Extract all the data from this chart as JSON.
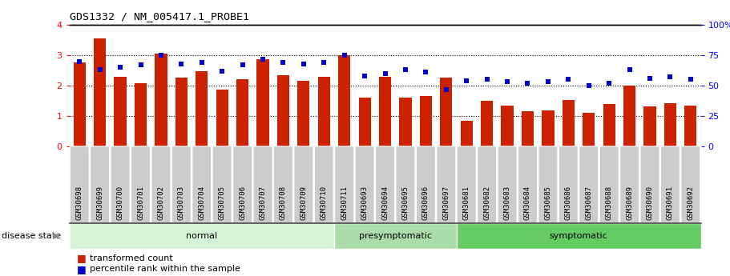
{
  "title": "GDS1332 / NM_005417.1_PROBE1",
  "samples": [
    "GSM30698",
    "GSM30699",
    "GSM30700",
    "GSM30701",
    "GSM30702",
    "GSM30703",
    "GSM30704",
    "GSM30705",
    "GSM30706",
    "GSM30707",
    "GSM30708",
    "GSM30709",
    "GSM30710",
    "GSM30711",
    "GSM30693",
    "GSM30694",
    "GSM30695",
    "GSM30696",
    "GSM30697",
    "GSM30681",
    "GSM30682",
    "GSM30683",
    "GSM30684",
    "GSM30685",
    "GSM30686",
    "GSM30687",
    "GSM30688",
    "GSM30689",
    "GSM30690",
    "GSM30691",
    "GSM30692"
  ],
  "bar_values": [
    2.75,
    3.55,
    2.28,
    2.07,
    3.05,
    2.25,
    2.47,
    1.88,
    2.22,
    2.86,
    2.33,
    2.15,
    2.3,
    3.0,
    1.6,
    2.3,
    1.6,
    1.65,
    2.25,
    0.85,
    1.5,
    1.35,
    1.15,
    1.18,
    1.52,
    1.1,
    1.38,
    2.0,
    1.32,
    1.42,
    1.35
  ],
  "dot_values": [
    70,
    63,
    65,
    67,
    75,
    68,
    69,
    62,
    67,
    72,
    69,
    68,
    69,
    75,
    58,
    60,
    63,
    61,
    47,
    54,
    55,
    53,
    52,
    53,
    55,
    50,
    52,
    63,
    56,
    57,
    55
  ],
  "groups": [
    {
      "label": "normal",
      "start": 0,
      "end": 13
    },
    {
      "label": "presymptomatic",
      "start": 13,
      "end": 19
    },
    {
      "label": "symptomatic",
      "start": 19,
      "end": 31
    }
  ],
  "group_colors": [
    "#d6f5d6",
    "#aaddaa",
    "#66cc66"
  ],
  "bar_color": "#cc2200",
  "dot_color": "#0000cc",
  "ylim_left": [
    0,
    4
  ],
  "ylim_right": [
    0,
    100
  ],
  "yticks_left": [
    0,
    1,
    2,
    3,
    4
  ],
  "yticks_right": [
    0,
    25,
    50,
    75,
    100
  ],
  "yticklabels_right": [
    "0",
    "25",
    "50",
    "75",
    "100%"
  ],
  "grid_values": [
    1,
    2,
    3
  ],
  "disease_state_label": "disease state",
  "legend_bar_label": "transformed count",
  "legend_dot_label": "percentile rank within the sample",
  "background_color": "#ffffff",
  "label_bg_color": "#cccccc",
  "separator_color": "#444444"
}
